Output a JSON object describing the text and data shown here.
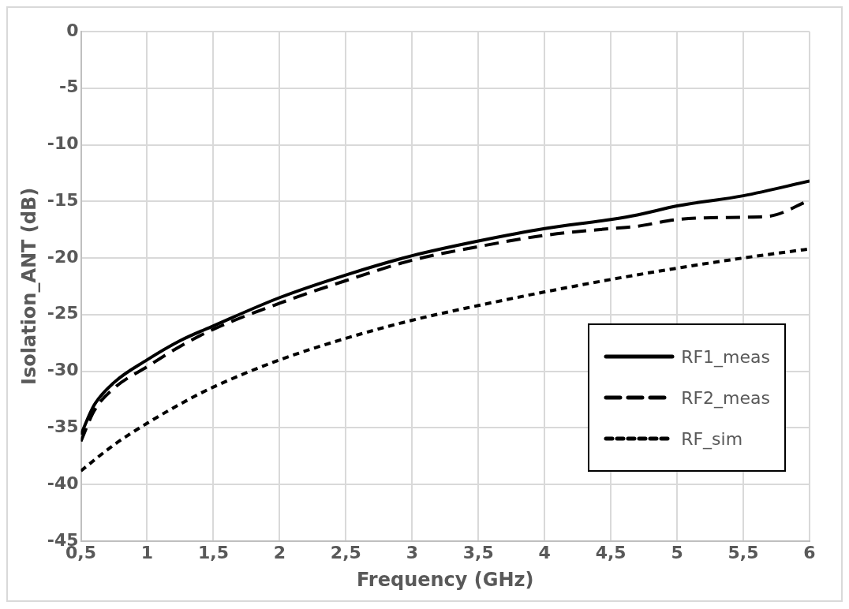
{
  "chart_data": {
    "type": "line",
    "xlabel": "Frequency (GHz)",
    "ylabel": "Isolation_ANT (dB)",
    "xlim": [
      0.5,
      6
    ],
    "ylim": [
      -45,
      0
    ],
    "xticks": [
      {
        "value": 0.5,
        "label": "0,5"
      },
      1,
      {
        "value": 1.5,
        "label": "1,5"
      },
      2,
      {
        "value": 2.5,
        "label": "2,5"
      },
      3,
      {
        "value": 3.5,
        "label": "3,5"
      },
      4,
      {
        "value": 4.5,
        "label": "4,5"
      },
      5,
      {
        "value": 5.5,
        "label": "5,5"
      },
      6
    ],
    "yticks": [
      -45,
      -40,
      -35,
      -30,
      -25,
      -20,
      -15,
      -10,
      -5,
      0
    ],
    "grid": true,
    "legend": "right",
    "marker": "none",
    "series": [
      {
        "name": "RF1_meas",
        "color": "#000000",
        "line_style": "solid",
        "x": [
          0.5,
          0.6,
          0.75,
          1,
          1.25,
          1.5,
          2,
          2.5,
          3,
          3.5,
          4,
          4.5,
          4.7,
          5,
          5.5,
          6
        ],
        "values": [
          -35.6,
          -33,
          -31,
          -29,
          -27.3,
          -26,
          -23.5,
          -21.5,
          -19.8,
          -18.5,
          -17.4,
          -16.6,
          -16.2,
          -15.4,
          -14.5,
          -13.2
        ]
      },
      {
        "name": "RF2_meas",
        "color": "#000000",
        "line_style": "dashed",
        "x": [
          0.5,
          0.6,
          0.75,
          1,
          1.25,
          1.5,
          2,
          2.5,
          3,
          3.5,
          4,
          4.5,
          4.7,
          5,
          5.5,
          5.7,
          6
        ],
        "values": [
          -36.2,
          -33.5,
          -31.5,
          -29.6,
          -27.8,
          -26.3,
          -24,
          -22,
          -20.2,
          -19,
          -18,
          -17.4,
          -17.2,
          -16.6,
          -16.4,
          -16.3,
          -14.9
        ]
      },
      {
        "name": "RF_sim",
        "color": "#000000",
        "line_style": "dotted",
        "x": [
          0.5,
          0.75,
          1,
          1.25,
          1.5,
          2,
          2.5,
          3,
          3.5,
          4,
          4.5,
          5,
          5.5,
          6
        ],
        "values": [
          -38.8,
          -36.5,
          -34.6,
          -32.9,
          -31.4,
          -29,
          -27.1,
          -25.5,
          -24.2,
          -23,
          -21.9,
          -20.9,
          -20,
          -19.2
        ]
      }
    ]
  }
}
